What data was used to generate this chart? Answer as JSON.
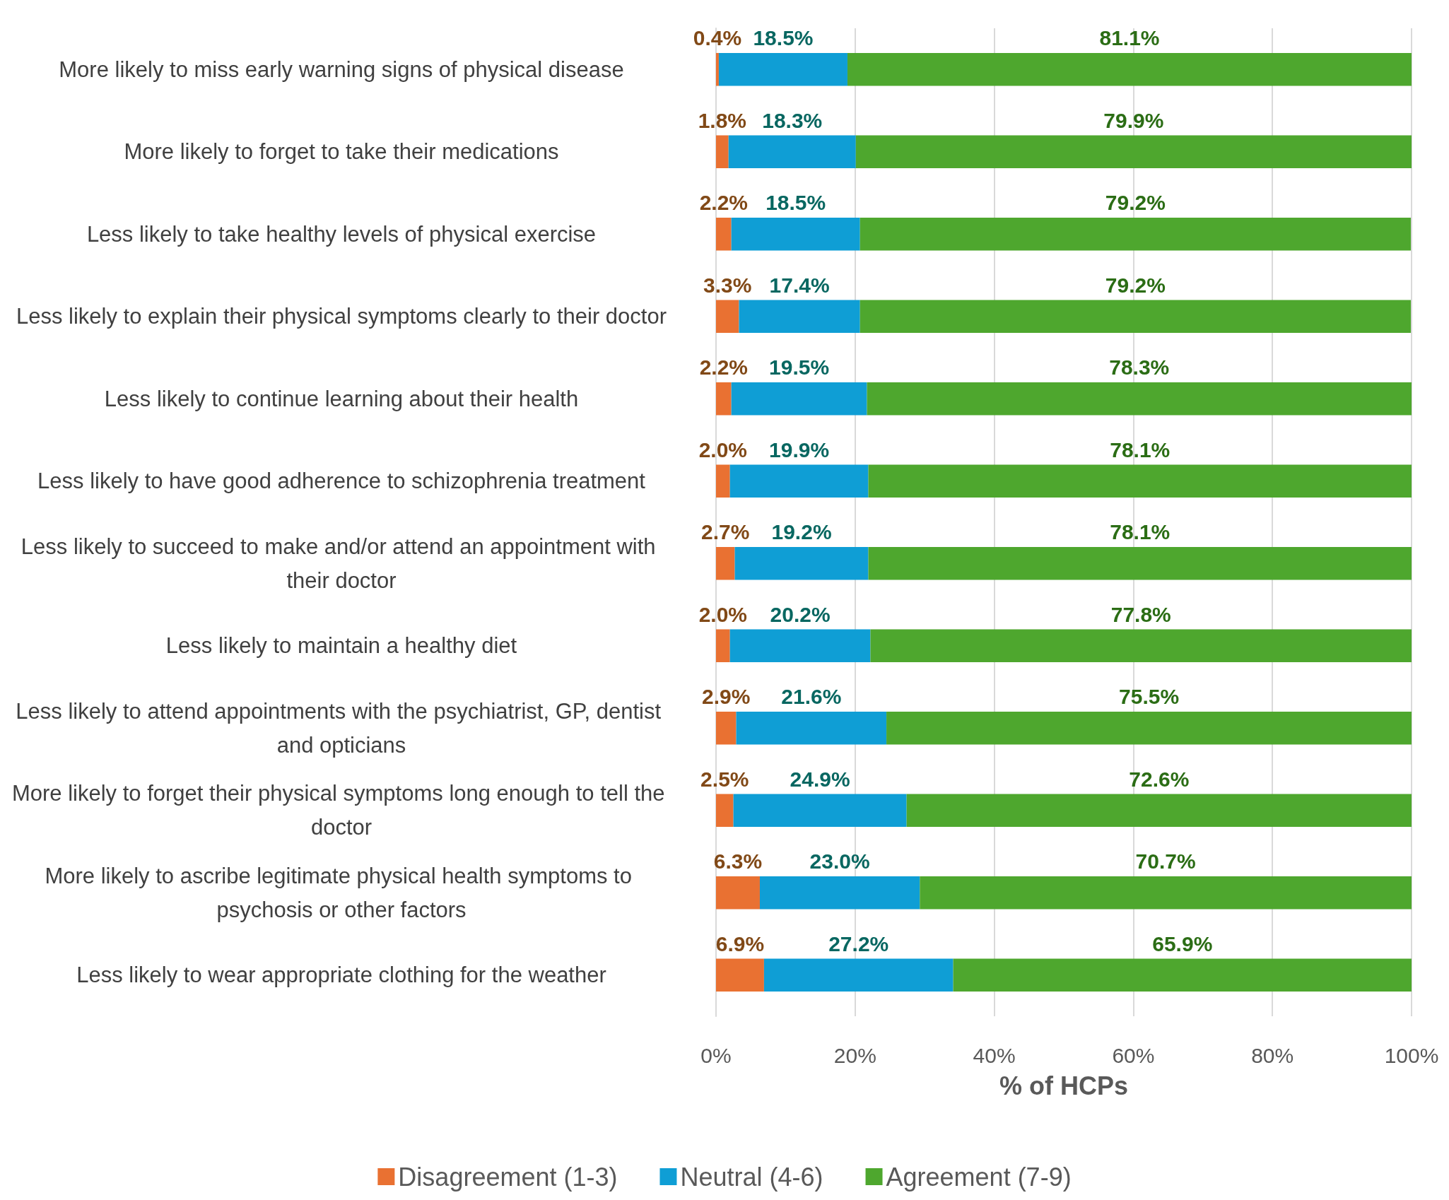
{
  "chart_data": {
    "type": "bar",
    "orientation": "horizontal",
    "stacked": true,
    "xlabel": "% of HCPs",
    "categories": [
      "More likely to miss early warning signs of physical disease",
      "More likely to forget to take their medications",
      "Less likely to take healthy levels of physical exercise",
      "Less likely to explain their physical symptoms clearly to their doctor",
      "Less likely to continue learning about their health",
      "Less likely to have good adherence to schizophrenia treatment",
      "Less likely to succeed to make and/or attend an appointment with their doctor",
      "Less likely to maintain a healthy diet",
      "Less likely to attend appointments with the psychiatrist, GP, dentist and opticians",
      "More likely to forget their physical symptoms long enough to tell the doctor",
      "More likely to ascribe legitimate physical health symptoms to psychosis or other factors",
      "Less likely to wear appropriate clothing for the weather"
    ],
    "series": [
      {
        "name": "Disagreement (1-3)",
        "color": "#e97132",
        "values": [
          0.4,
          1.8,
          2.2,
          3.3,
          2.2,
          2.0,
          2.7,
          2.0,
          2.9,
          2.5,
          6.3,
          6.9
        ],
        "value_labels": [
          "0.4%",
          "1.8%",
          "2.2%",
          "3.3%",
          "2.2%",
          "2.0%",
          "2.7%",
          "2.0%",
          "2.9%",
          "2.5%",
          "6.3%",
          "6.9%"
        ]
      },
      {
        "name": "Neutral (4-6)",
        "color": "#0f9ed5",
        "values": [
          18.5,
          18.3,
          18.5,
          17.4,
          19.5,
          19.9,
          19.2,
          20.2,
          21.6,
          24.9,
          23.0,
          27.2
        ],
        "value_labels": [
          "18.5%",
          "18.3%",
          "18.5%",
          "17.4%",
          "19.5%",
          "19.9%",
          "19.2%",
          "20.2%",
          "21.6%",
          "24.9%",
          "23.0%",
          "27.2%"
        ]
      },
      {
        "name": "Agreement (7-9)",
        "color": "#4ea72e",
        "values": [
          81.1,
          79.9,
          79.2,
          79.2,
          78.3,
          78.1,
          78.1,
          77.8,
          75.5,
          72.6,
          70.7,
          65.9
        ],
        "value_labels": [
          "81.1%",
          "79.9%",
          "79.2%",
          "79.2%",
          "78.3%",
          "78.1%",
          "78.1%",
          "77.8%",
          "75.5%",
          "72.6%",
          "70.7%",
          "65.9%"
        ]
      }
    ],
    "xlim": [
      0,
      100
    ],
    "xticks": [
      {
        "value": 0,
        "label": "0%"
      },
      {
        "value": 20,
        "label": "20%"
      },
      {
        "value": 40,
        "label": "40%"
      },
      {
        "value": 60,
        "label": "60%"
      },
      {
        "value": 80,
        "label": "80%"
      },
      {
        "value": 100,
        "label": "100%"
      }
    ],
    "grid": "x",
    "legend": "bottom"
  }
}
